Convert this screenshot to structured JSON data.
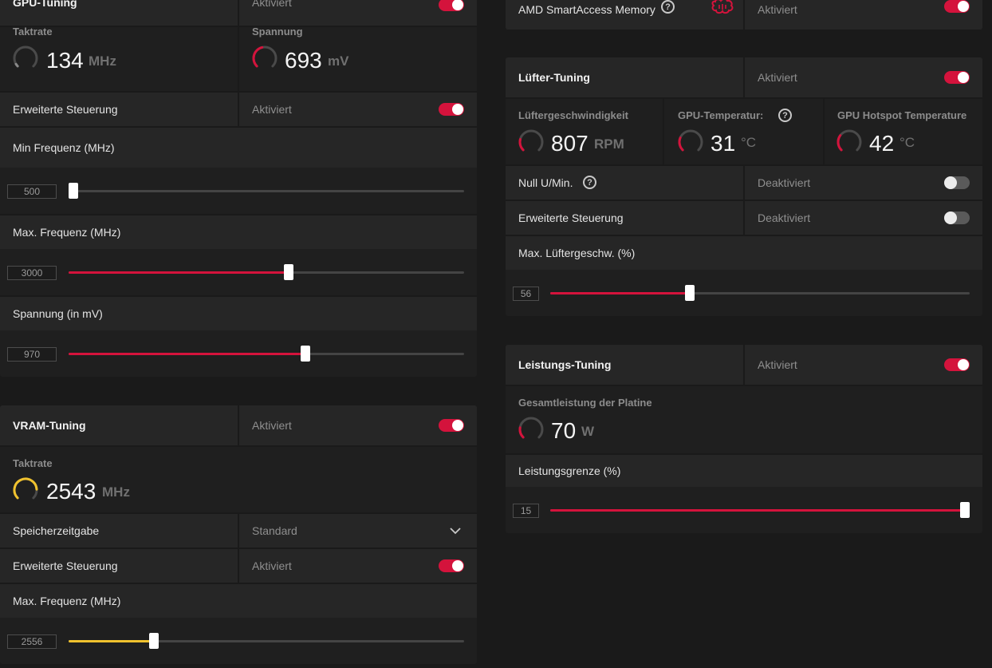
{
  "colors": {
    "accent_red": "#d4133c",
    "accent_yellow": "#f0c22e",
    "panel": "#262626",
    "background": "#1a1a1a"
  },
  "gpu_tuning": {
    "title": "GPU-Tuning",
    "state": "Aktiviert",
    "enabled": true,
    "clock": {
      "title": "Taktrate",
      "value": "134",
      "unit": "MHz",
      "gauge_fraction": 0.05,
      "gauge_color": "grey"
    },
    "voltage": {
      "title": "Spannung",
      "value": "693",
      "unit": "mV",
      "gauge_fraction": 0.45,
      "gauge_color": "red"
    },
    "advanced": {
      "label": "Erweiterte Steuerung",
      "state": "Aktiviert",
      "enabled": true
    },
    "min_freq": {
      "label": "Min Frequenz (MHz)",
      "value": "500",
      "fraction": 0.0
    },
    "max_freq": {
      "label": "Max. Frequenz (MHz)",
      "value": "3000",
      "fraction": 0.556
    },
    "voltage_slider": {
      "label": "Spannung (in mV)",
      "value": "970",
      "fraction": 0.599
    }
  },
  "vram_tuning": {
    "title": "VRAM-Tuning",
    "state": "Aktiviert",
    "enabled": true,
    "clock": {
      "title": "Taktrate",
      "value": "2543",
      "unit": "MHz",
      "gauge_fraction": 0.82,
      "gauge_color": "yellow"
    },
    "memory_timing": {
      "label": "Speicherzeitgabe",
      "value": "Standard"
    },
    "advanced": {
      "label": "Erweiterte Steuerung",
      "state": "Aktiviert",
      "enabled": true
    },
    "max_freq": {
      "label": "Max. Frequenz (MHz)",
      "value": "2556",
      "fraction": 0.216
    }
  },
  "smart_access": {
    "label": "AMD SmartAccess Memory",
    "state": "Aktiviert",
    "enabled": true,
    "icon": "brain-chip-icon"
  },
  "fan_tuning": {
    "title": "Lüfter-Tuning",
    "state": "Aktiviert",
    "enabled": true,
    "fan_speed": {
      "title": "Lüftergeschwindigkeit",
      "value": "807",
      "unit": "RPM",
      "gauge_fraction": 0.22
    },
    "gpu_temp": {
      "title": "GPU-Temperatur:",
      "value": "31",
      "unit": "°C",
      "gauge_fraction": 0.25
    },
    "hotspot_temp": {
      "title": "GPU Hotspot Temperature",
      "value": "42",
      "unit": "°C",
      "gauge_fraction": 0.3
    },
    "zero_rpm": {
      "label": "Null U/Min.",
      "state": "Deaktiviert",
      "enabled": false
    },
    "advanced": {
      "label": "Erweiterte Steuerung",
      "state": "Deaktiviert",
      "enabled": false
    },
    "max_fan": {
      "label": "Max. Lüftergeschw. (%)",
      "value": "56",
      "fraction": 0.332
    }
  },
  "power_tuning": {
    "title": "Leistungs-Tuning",
    "state": "Aktiviert",
    "enabled": true,
    "board_power": {
      "title": "Gesamtleistung der Platine",
      "value": "70",
      "unit": "W",
      "gauge_fraction": 0.2
    },
    "power_limit": {
      "label": "Leistungsgrenze (%)",
      "value": "15",
      "fraction": 1.0
    }
  }
}
